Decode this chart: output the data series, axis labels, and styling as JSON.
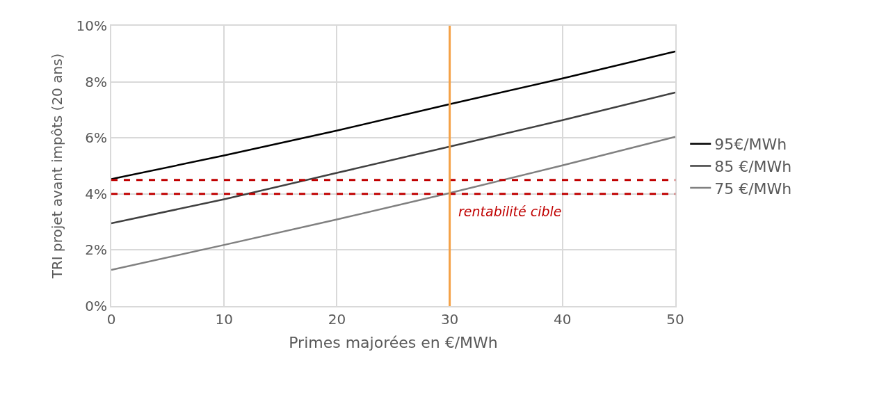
{
  "chart_data": {
    "type": "line",
    "xlabel": "Primes majorées en €/MWh",
    "ylabel": "TRI projet avant impôts (20 ans)",
    "x": [
      0,
      10,
      20,
      30,
      40,
      50
    ],
    "series": [
      {
        "name": "95€/MWh",
        "color": "#000000",
        "values": [
          4.53,
          5.37,
          6.26,
          7.2,
          8.12,
          9.08
        ]
      },
      {
        "name": "85 €/MWh",
        "color": "#404040",
        "values": [
          2.95,
          3.81,
          4.75,
          5.69,
          6.63,
          7.62
        ]
      },
      {
        "name": "75 €/MWh",
        "color": "#808080",
        "values": [
          1.29,
          2.18,
          3.09,
          4.03,
          5.02,
          6.04
        ]
      }
    ],
    "xlim": [
      0,
      50
    ],
    "xticks": [
      0,
      10,
      20,
      30,
      40,
      50
    ],
    "ylim": [
      0,
      10
    ],
    "yticks": [
      {
        "value": 0,
        "label": "0%"
      },
      {
        "value": 2,
        "label": "2%"
      },
      {
        "value": 4,
        "label": "4%"
      },
      {
        "value": 6,
        "label": "6%"
      },
      {
        "value": 8,
        "label": "8%"
      },
      {
        "value": 10,
        "label": "10%"
      }
    ],
    "ref_lines": [
      {
        "axis": "y",
        "value": 4.5,
        "color": "#c00000",
        "line_style": "dashed"
      },
      {
        "axis": "y",
        "value": 4,
        "color": "#c00000",
        "line_style": "dashed",
        "label": "rentabilité cible"
      },
      {
        "axis": "x",
        "value": 30,
        "color": "#f4a045",
        "line_style": "solid"
      }
    ],
    "grid": true,
    "legend": "right",
    "marker": "none",
    "line_style": "solid"
  }
}
